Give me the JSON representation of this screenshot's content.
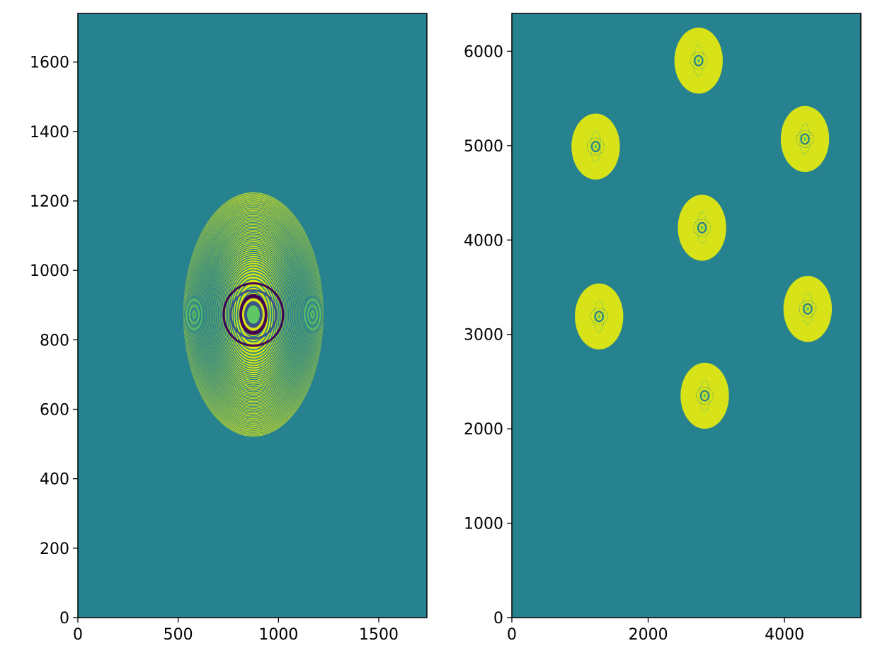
{
  "colors": {
    "background": "#26828e",
    "ring_bright": "#d8e219",
    "ring_dark": "#440154",
    "ring_mid": "#3b528b",
    "ring_green": "#5ec962"
  },
  "chart_data": [
    {
      "type": "heatmap",
      "title": "",
      "xlabel": "",
      "ylabel": "",
      "xlim": [
        0,
        1740
      ],
      "ylim": [
        0,
        1740
      ],
      "xticks": [
        0,
        500,
        1000,
        1500
      ],
      "yticks": [
        0,
        200,
        400,
        600,
        800,
        1000,
        1200,
        1400,
        1600
      ],
      "xtick_labels": [
        "0",
        "500",
        "1000",
        "1500"
      ],
      "ytick_labels": [
        "0",
        "200",
        "400",
        "600",
        "800",
        "1000",
        "1200",
        "1400",
        "1600"
      ],
      "colormap": "viridis",
      "features": [
        {
          "kind": "interference-ellipse",
          "center": [
            875,
            873
          ],
          "semi_axes": [
            350,
            352
          ],
          "side_lobes": [
            [
              580,
              873
            ],
            [
              1170,
              873
            ]
          ]
        }
      ]
    },
    {
      "type": "heatmap",
      "title": "",
      "xlabel": "",
      "ylabel": "",
      "xlim": [
        0,
        5120
      ],
      "ylim": [
        0,
        6400
      ],
      "xticks": [
        0,
        2000,
        4000
      ],
      "yticks": [
        0,
        1000,
        2000,
        3000,
        4000,
        5000,
        6000
      ],
      "xtick_labels": [
        "0",
        "2000",
        "4000"
      ],
      "ytick_labels": [
        "0",
        "1000",
        "2000",
        "3000",
        "4000",
        "5000",
        "6000"
      ],
      "colormap": "viridis",
      "features": [
        {
          "kind": "spot",
          "center": [
            2740,
            5900
          ],
          "semi_axes": [
            355,
            350
          ]
        },
        {
          "kind": "spot",
          "center": [
            1230,
            4990
          ],
          "semi_axes": [
            355,
            350
          ]
        },
        {
          "kind": "spot",
          "center": [
            4300,
            5070
          ],
          "semi_axes": [
            355,
            350
          ]
        },
        {
          "kind": "spot",
          "center": [
            2790,
            4130
          ],
          "semi_axes": [
            355,
            350
          ]
        },
        {
          "kind": "spot",
          "center": [
            1280,
            3190
          ],
          "semi_axes": [
            355,
            350
          ]
        },
        {
          "kind": "spot",
          "center": [
            4340,
            3270
          ],
          "semi_axes": [
            355,
            350
          ]
        },
        {
          "kind": "spot",
          "center": [
            2830,
            2350
          ],
          "semi_axes": [
            355,
            350
          ]
        }
      ]
    }
  ]
}
